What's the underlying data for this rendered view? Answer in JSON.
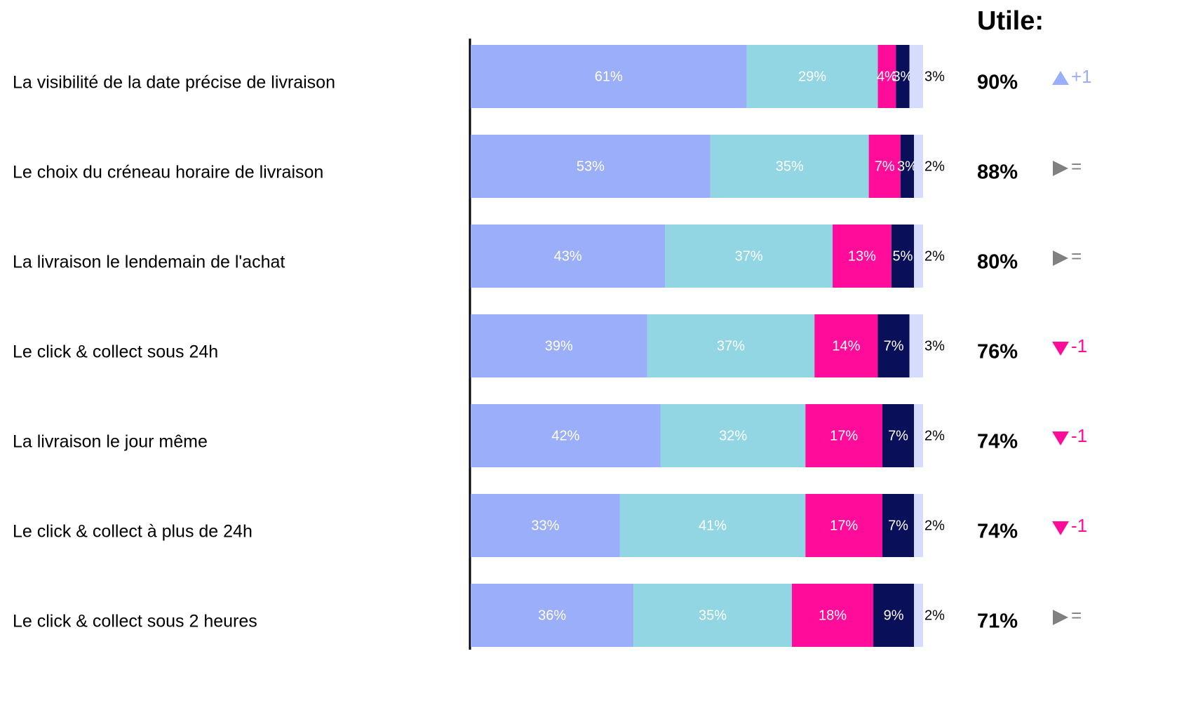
{
  "chart_data": {
    "type": "stacked-bar-horizontal",
    "categories": [
      "La visibilité de la date précise de livraison",
      "Le choix du créneau horaire de livraison",
      "La livraison le lendemain de l'achat",
      "Le click & collect sous 24h",
      "La livraison le jour même",
      "Le click & collect à plus de 24h",
      "Le click & collect sous 2 heures"
    ],
    "xlim": [
      0,
      100
    ],
    "series": [
      {
        "color": "#9aaef9",
        "values": [
          61,
          53,
          43,
          39,
          42,
          33,
          36
        ],
        "value_labels": [
          "61%",
          "53%",
          "43%",
          "39%",
          "42%",
          "33%",
          "36%"
        ]
      },
      {
        "color": "#92d6e3",
        "values": [
          29,
          35,
          37,
          37,
          32,
          41,
          35
        ],
        "value_labels": [
          "29%",
          "35%",
          "37%",
          "37%",
          "32%",
          "41%",
          "35%"
        ]
      },
      {
        "color": "#ff0d9a",
        "values": [
          4,
          7,
          13,
          14,
          17,
          17,
          18
        ],
        "value_labels": [
          "4%",
          "7%",
          "13%",
          "14%",
          "17%",
          "17%",
          "18%"
        ]
      },
      {
        "color": "#0a0f5a",
        "values": [
          3,
          3,
          5,
          7,
          7,
          7,
          9
        ],
        "value_labels": [
          "3%",
          "3%",
          "5%",
          "7%",
          "7%",
          "7%",
          "9%"
        ]
      },
      {
        "color": "#d6dcfb",
        "values": [
          3,
          2,
          2,
          3,
          2,
          2,
          2
        ],
        "value_labels": [
          "3%",
          "2%",
          "2%",
          "3%",
          "2%",
          "2%",
          "2%"
        ]
      }
    ],
    "utile": {
      "title": "Utile:",
      "values": [
        90,
        88,
        80,
        76,
        74,
        74,
        71
      ],
      "value_labels": [
        "90%",
        "88%",
        "80%",
        "76%",
        "74%",
        "74%",
        "71%"
      ]
    },
    "trend": [
      {
        "label": "+1",
        "direction": "up",
        "color": "#9aaef9"
      },
      {
        "label": "=",
        "direction": "right",
        "color": "#808080"
      },
      {
        "label": "=",
        "direction": "right",
        "color": "#808080"
      },
      {
        "label": "-1",
        "direction": "down",
        "color": "#ff0d9a"
      },
      {
        "label": "-1",
        "direction": "down",
        "color": "#ff0d9a"
      },
      {
        "label": "-1",
        "direction": "down",
        "color": "#ff0d9a"
      },
      {
        "label": "=",
        "direction": "right",
        "color": "#808080"
      }
    ]
  }
}
